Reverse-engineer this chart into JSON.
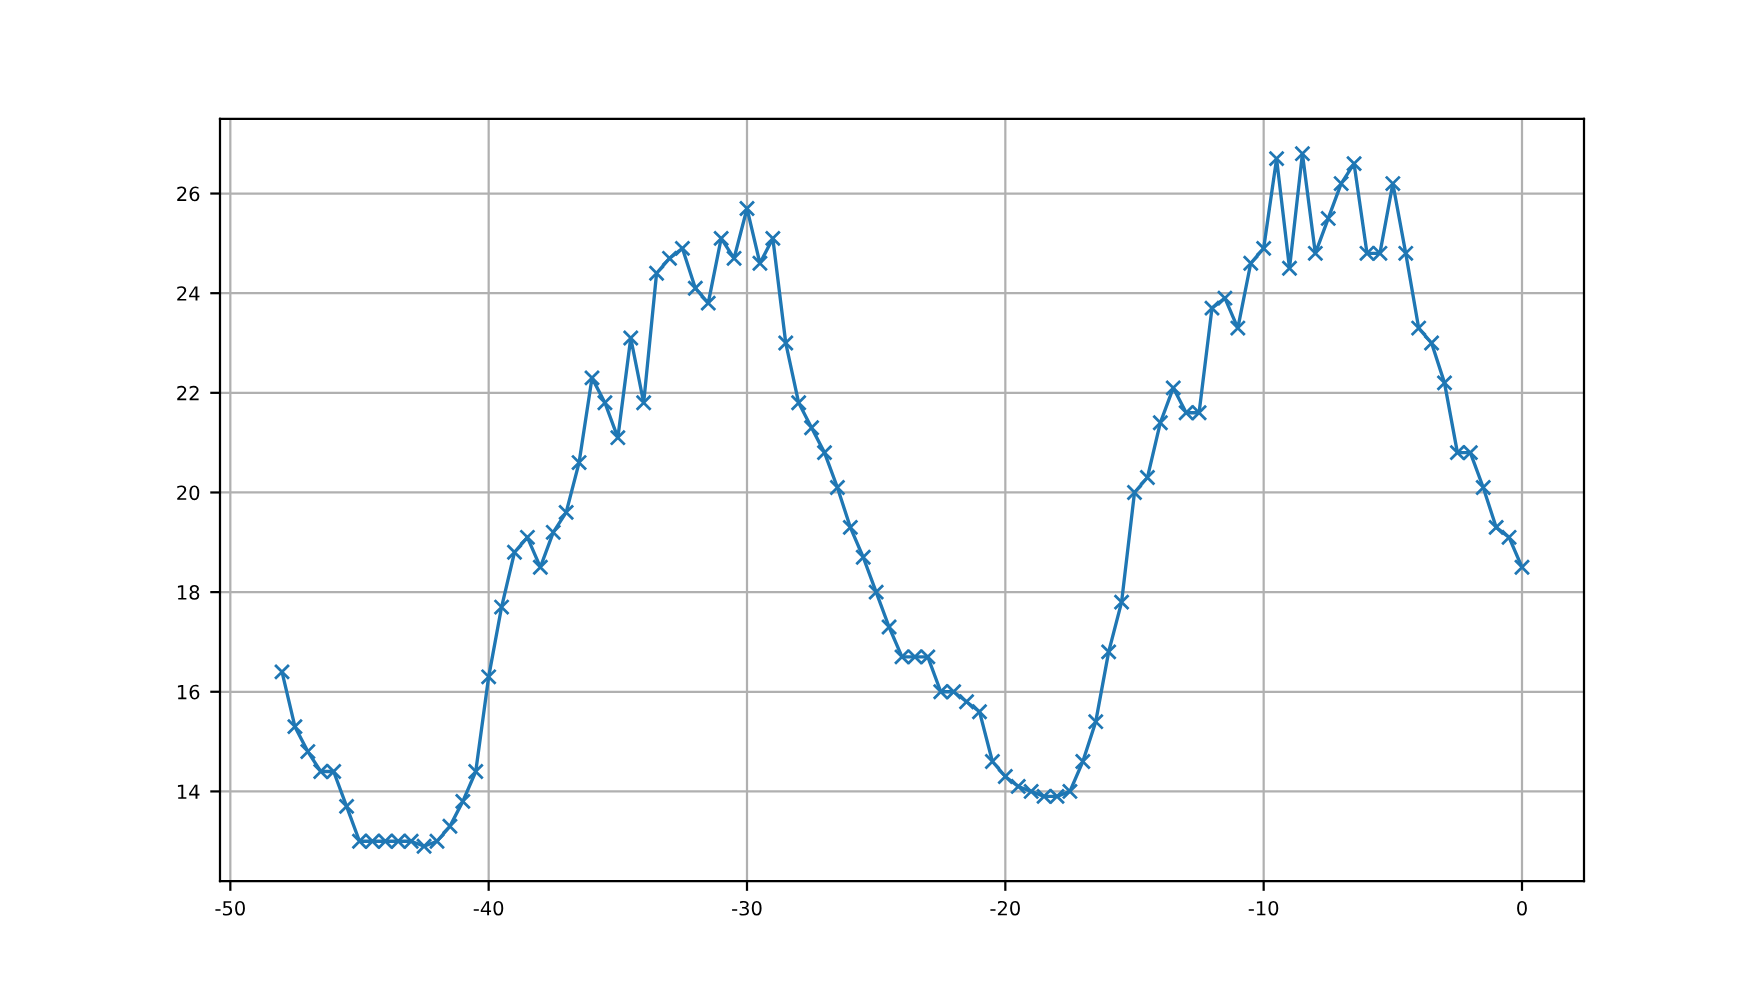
{
  "chart_data": {
    "type": "line",
    "marker": "cross",
    "grid": true,
    "x": [
      -48,
      -47.5,
      -47,
      -46.5,
      -46,
      -45.5,
      -45,
      -44.5,
      -44,
      -43.5,
      -43,
      -42.5,
      -42,
      -41.5,
      -41,
      -40.5,
      -40,
      -39.5,
      -39,
      -38.5,
      -38,
      -37.5,
      -37,
      -36.5,
      -36,
      -35.5,
      -35,
      -34.5,
      -34,
      -33.5,
      -33,
      -32.5,
      -32,
      -31.5,
      -31,
      -30.5,
      -30,
      -29.5,
      -29,
      -28.5,
      -28,
      -27.5,
      -27,
      -26.5,
      -26,
      -25.5,
      -25,
      -24.5,
      -24,
      -23.5,
      -23,
      -22.5,
      -22,
      -21.5,
      -21,
      -20.5,
      -20,
      -19.5,
      -19,
      -18.5,
      -18,
      -17.5,
      -17,
      -16.5,
      -16,
      -15.5,
      -15,
      -14.5,
      -14,
      -13.5,
      -13,
      -12.5,
      -12,
      -11.5,
      -11,
      -10.5,
      -10,
      -9.5,
      -9,
      -8.5,
      -8,
      -7.5,
      -7,
      -6.5,
      -6,
      -5.5,
      -5,
      -4.5,
      -4,
      -3.5,
      -3,
      -2.5,
      -2,
      -1.5,
      -1,
      -0.5,
      0
    ],
    "series": [
      {
        "color": "#1f77b4",
        "values": [
          16.4,
          15.3,
          14.8,
          14.4,
          14.4,
          13.7,
          13.0,
          13.0,
          13.0,
          13.0,
          13.0,
          12.9,
          13.0,
          13.3,
          13.8,
          14.4,
          16.3,
          17.7,
          18.8,
          19.1,
          18.5,
          19.2,
          19.6,
          20.6,
          22.3,
          21.8,
          21.1,
          23.1,
          21.8,
          24.4,
          24.7,
          24.9,
          24.1,
          23.8,
          25.1,
          24.7,
          25.7,
          24.6,
          25.1,
          23.0,
          21.8,
          21.3,
          20.8,
          20.1,
          19.3,
          18.7,
          18.0,
          17.3,
          16.7,
          16.7,
          16.7,
          16.0,
          16.0,
          15.8,
          15.6,
          14.6,
          14.3,
          14.1,
          14.0,
          13.9,
          13.9,
          14.0,
          14.6,
          15.4,
          16.8,
          17.8,
          20.0,
          20.3,
          21.4,
          22.1,
          21.6,
          21.6,
          23.7,
          23.9,
          23.3,
          24.6,
          24.9,
          26.7,
          24.5,
          26.8,
          24.8,
          25.5,
          26.2,
          26.6,
          24.8,
          24.8,
          26.2,
          24.8,
          23.3,
          23.0,
          22.2,
          20.8,
          20.8,
          20.1,
          19.3,
          19.1,
          18.5
        ]
      }
    ],
    "xlim": [
      -50.4,
      2.4
    ],
    "ylim": [
      12.2,
      27.5
    ],
    "xticks": [
      -50,
      -40,
      -30,
      -20,
      -10,
      0
    ],
    "yticks": [
      14,
      16,
      18,
      20,
      22,
      24,
      26
    ]
  }
}
